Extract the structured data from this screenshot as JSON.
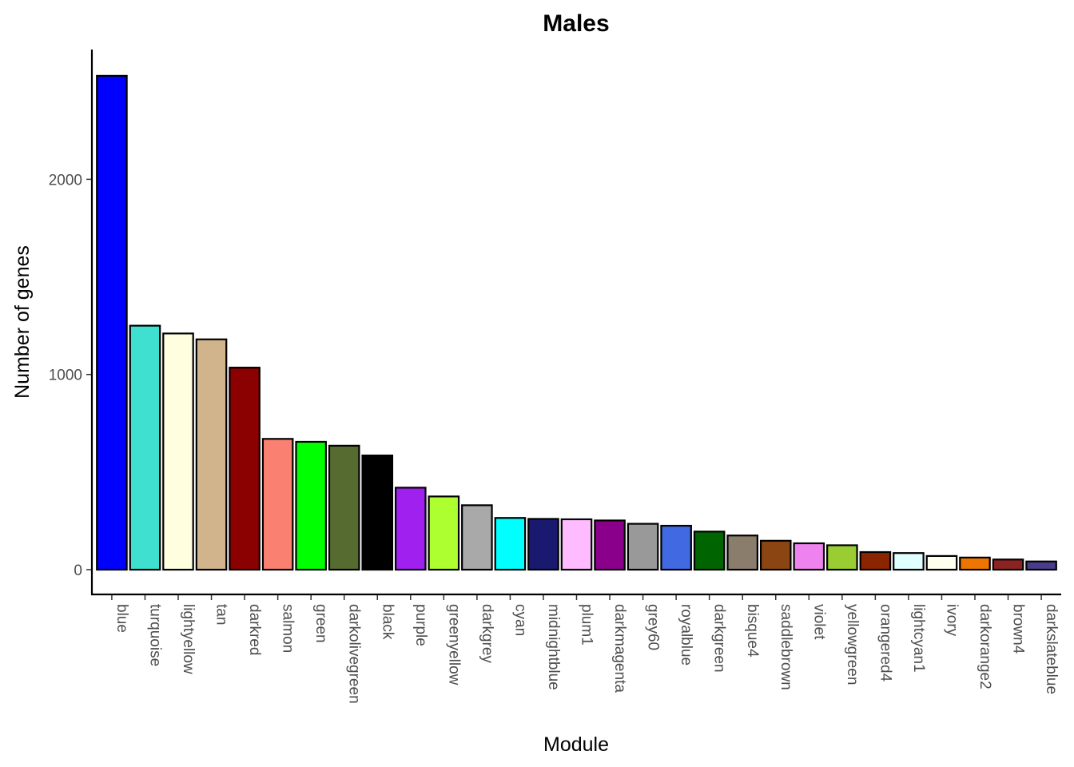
{
  "chart_data": {
    "type": "bar",
    "title": "Males",
    "xlabel": "Module",
    "ylabel": "Number of genes",
    "ylim": [
      -120,
      2665
    ],
    "yticks": [
      0,
      1000,
      2000
    ],
    "grid": false,
    "legend": "none",
    "categories": [
      "blue",
      "turquoise",
      "lightyellow",
      "tan",
      "darkred",
      "salmon",
      "green",
      "darkolivegreen",
      "black",
      "purple",
      "greenyellow",
      "darkgrey",
      "cyan",
      "midnightblue",
      "plum1",
      "darkmagenta",
      "grey60",
      "royalblue",
      "darkgreen",
      "bisque4",
      "saddlebrown",
      "violet",
      "yellowgreen",
      "orangered4",
      "lightcyan1",
      "ivory",
      "darkorange2",
      "brown4",
      "darkslateblue"
    ],
    "values": [
      2530,
      1250,
      1210,
      1180,
      1035,
      670,
      655,
      635,
      585,
      420,
      375,
      330,
      265,
      260,
      258,
      252,
      235,
      225,
      195,
      175,
      148,
      135,
      125,
      90,
      85,
      70,
      62,
      52,
      42
    ],
    "colors": [
      "#0000FF",
      "#40E0D0",
      "#FFFFE0",
      "#D2B48C",
      "#8B0000",
      "#FA8072",
      "#00FF00",
      "#556B2F",
      "#000000",
      "#A020F0",
      "#ADFF2F",
      "#A9A9A9",
      "#00FFFF",
      "#191970",
      "#FFBBFF",
      "#8B008B",
      "#999999",
      "#4169E1",
      "#006400",
      "#8B7D6B",
      "#8B4513",
      "#EE82EE",
      "#9ACD32",
      "#8B2500",
      "#E0FFFF",
      "#FFFFF0",
      "#EE7600",
      "#8B2323",
      "#483D8B"
    ]
  }
}
